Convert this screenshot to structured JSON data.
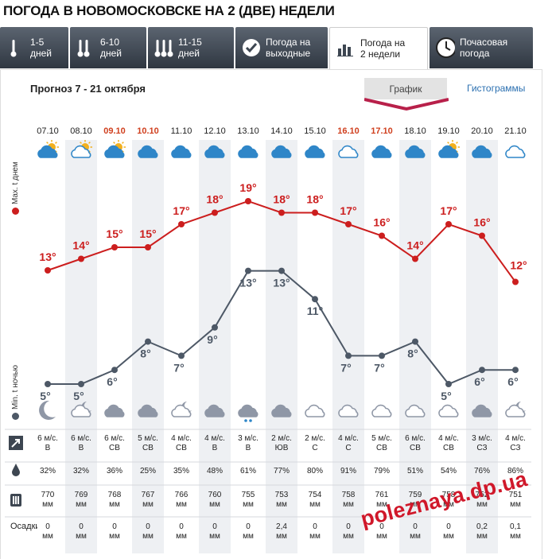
{
  "page_title": "ПОГОДА В НОВОМОСКОВСКЕ НА 2 (ДВЕ) НЕДЕЛИ",
  "tabs": [
    {
      "label": "1-5\nдней",
      "icon": "single-thermometer-icon",
      "active": false,
      "width": 86
    },
    {
      "label": "6-10\nдней",
      "icon": "double-thermometer-icon",
      "active": false,
      "width": 96
    },
    {
      "label": "11-15\nдней",
      "icon": "triple-thermometer-icon",
      "active": false,
      "width": 108
    },
    {
      "label": "Погода на\nвыходные",
      "icon": "checkmark-circle-icon",
      "active": false,
      "width": 116
    },
    {
      "label": "Погода на\n2 недели",
      "icon": "bar-chart-icon",
      "active": true,
      "width": 124
    },
    {
      "label": "Почасовая\nпогода",
      "icon": "clock-icon",
      "active": false,
      "width": 130
    }
  ],
  "range_title": "Прогноз 7 - 21 октября",
  "view_graph_label": "График",
  "view_hist_label": "Гистограммы",
  "axis_day_label": "Max. t днем",
  "axis_night_label": "Min. t ночью",
  "row_labels": {
    "pressure_unit": "мм",
    "precip": "Осадки"
  },
  "colors": {
    "day": "#cc1e1e",
    "night": "#4d5866",
    "weekend": "#d0401f",
    "stripe": "#eef0f3"
  },
  "watermark": "poleznaya.dp.ua",
  "days": [
    {
      "date": "07.10",
      "weekend": false,
      "day_icon": "cloud-sun-icon",
      "night_icon": "moon-icon",
      "wind": "6 м/с.",
      "dir": "В",
      "hum": "32%",
      "press": "770",
      "precip": "0"
    },
    {
      "date": "08.10",
      "weekend": false,
      "day_icon": "cloud-sun-outline-icon",
      "night_icon": "cloud-moon-icon",
      "wind": "6 м/с.",
      "dir": "В",
      "hum": "32%",
      "press": "769",
      "precip": "0"
    },
    {
      "date": "09.10",
      "weekend": true,
      "day_icon": "cloud-sun-icon",
      "night_icon": "cloud-icon",
      "wind": "6 м/с.",
      "dir": "СВ",
      "hum": "36%",
      "press": "768",
      "precip": "0"
    },
    {
      "date": "10.10",
      "weekend": true,
      "day_icon": "cloud-icon",
      "night_icon": "cloud-icon",
      "wind": "5 м/с.",
      "dir": "СВ",
      "hum": "25%",
      "press": "767",
      "precip": "0"
    },
    {
      "date": "11.10",
      "weekend": false,
      "day_icon": "cloud-icon",
      "night_icon": "cloud-moon-icon",
      "wind": "4 м/с.",
      "dir": "СВ",
      "hum": "35%",
      "press": "766",
      "precip": "0"
    },
    {
      "date": "12.10",
      "weekend": false,
      "day_icon": "cloud-icon",
      "night_icon": "cloud-icon",
      "wind": "4 м/с.",
      "dir": "В",
      "hum": "48%",
      "press": "760",
      "precip": "0"
    },
    {
      "date": "13.10",
      "weekend": false,
      "day_icon": "cloud-icon",
      "night_icon": "rain-cloud-icon",
      "wind": "3 м/с.",
      "dir": "В",
      "hum": "61%",
      "press": "755",
      "precip": "0"
    },
    {
      "date": "14.10",
      "weekend": false,
      "day_icon": "cloud-icon",
      "night_icon": "cloud-icon",
      "wind": "2 м/с.",
      "dir": "ЮВ",
      "hum": "77%",
      "press": "753",
      "precip": "2,4"
    },
    {
      "date": "15.10",
      "weekend": false,
      "day_icon": "cloud-icon",
      "night_icon": "cloud-outline-icon",
      "wind": "2 м/с.",
      "dir": "С",
      "hum": "80%",
      "press": "754",
      "precip": "0"
    },
    {
      "date": "16.10",
      "weekend": true,
      "day_icon": "cloud-outline-icon",
      "night_icon": "cloud-outline-icon",
      "wind": "4 м/с.",
      "dir": "С",
      "hum": "91%",
      "press": "758",
      "precip": "0"
    },
    {
      "date": "17.10",
      "weekend": true,
      "day_icon": "cloud-icon",
      "night_icon": "cloud-outline-icon",
      "wind": "5 м/с.",
      "dir": "СВ",
      "hum": "79%",
      "press": "761",
      "precip": "0"
    },
    {
      "date": "18.10",
      "weekend": false,
      "day_icon": "cloud-icon",
      "night_icon": "cloud-outline-icon",
      "wind": "6 м/с.",
      "dir": "СВ",
      "hum": "51%",
      "press": "759",
      "precip": "0"
    },
    {
      "date": "19.10",
      "weekend": false,
      "day_icon": "cloud-sun-icon",
      "night_icon": "cloud-outline-icon",
      "wind": "4 м/с.",
      "dir": "СВ",
      "hum": "54%",
      "press": "758",
      "precip": "0"
    },
    {
      "date": "20.10",
      "weekend": false,
      "day_icon": "cloud-icon",
      "night_icon": "cloud-icon",
      "wind": "3 м/с.",
      "dir": "СЗ",
      "hum": "76%",
      "press": "752",
      "precip": "0,2"
    },
    {
      "date": "21.10",
      "weekend": false,
      "day_icon": "cloud-outline-icon",
      "night_icon": "cloud-moon-icon",
      "wind": "4 м/с.",
      "dir": "СЗ",
      "hum": "86%",
      "press": "751",
      "precip": "0,1"
    }
  ],
  "chart_data": {
    "type": "line",
    "x": [
      "07.10",
      "08.10",
      "09.10",
      "10.10",
      "11.10",
      "12.10",
      "13.10",
      "14.10",
      "15.10",
      "16.10",
      "17.10",
      "18.10",
      "19.10",
      "20.10",
      "21.10"
    ],
    "series": [
      {
        "name": "Max. t днем",
        "values": [
          13,
          14,
          15,
          15,
          17,
          18,
          19,
          18,
          18,
          17,
          16,
          14,
          17,
          16,
          12
        ]
      },
      {
        "name": "Min. t ночью",
        "values": [
          5,
          5,
          6,
          8,
          7,
          9,
          13,
          13,
          11,
          7,
          7,
          8,
          5,
          6,
          6
        ]
      }
    ],
    "value_suffix": "°"
  }
}
